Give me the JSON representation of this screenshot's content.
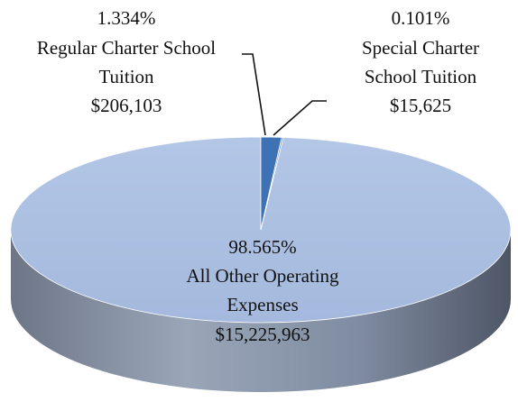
{
  "chart_data": {
    "type": "pie",
    "title": "",
    "slices": [
      {
        "name": "Regular Charter School Tuition",
        "percent": 1.334,
        "value": 206103,
        "label_lines": [
          "1.334%",
          "Regular Charter School",
          "Tuition",
          "$206,103"
        ],
        "color": "#3f72b5"
      },
      {
        "name": "Special Charter School Tuition",
        "percent": 0.101,
        "value": 15625,
        "label_lines": [
          "0.101%",
          "Special Charter",
          "School Tuition",
          "$15,625"
        ],
        "color": "#6a8fc7"
      },
      {
        "name": "All Other Operating Expenses",
        "percent": 98.565,
        "value": 15225963,
        "label_lines": [
          "98.565%",
          "All Other Operating",
          "Expenses",
          "$15,225,963"
        ],
        "color": "#a8bde0"
      }
    ]
  }
}
